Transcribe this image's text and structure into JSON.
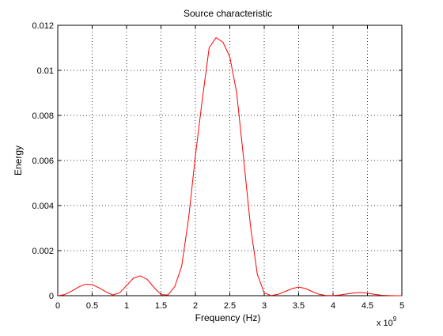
{
  "chart_data": {
    "type": "line",
    "title": "Source characteristic",
    "xlabel": "Frequency (Hz)",
    "ylabel": "Energy",
    "x_exponent_label": "x 10",
    "x_exponent_power": "9",
    "xlim": [
      0,
      5
    ],
    "ylim": [
      0,
      0.012
    ],
    "xticks": [
      "0",
      "0.5",
      "1",
      "1.5",
      "2",
      "2.5",
      "3",
      "3.5",
      "4",
      "4.5",
      "5"
    ],
    "yticks": [
      "0",
      "0.002",
      "0.004",
      "0.006",
      "0.008",
      "0.01",
      "0.012"
    ],
    "grid": true,
    "grid_style": "dotted",
    "line_color": "#ff0000",
    "series": [
      {
        "x": [
          0,
          0.1,
          0.2,
          0.3,
          0.4,
          0.5,
          0.6,
          0.7,
          0.8,
          0.9,
          1.0,
          1.1,
          1.2,
          1.3,
          1.4,
          1.5,
          1.6,
          1.7,
          1.8,
          1.9,
          2.0,
          2.1,
          2.2,
          2.3,
          2.4,
          2.5,
          2.6,
          2.7,
          2.8,
          2.9,
          3.0,
          3.1,
          3.2,
          3.3,
          3.4,
          3.5,
          3.6,
          3.7,
          3.8,
          3.9,
          4.0,
          4.1,
          4.2,
          4.3,
          4.4,
          4.5,
          4.6,
          4.7,
          4.8,
          4.9,
          5.0
        ],
        "y": [
          0.0,
          5e-05,
          0.0002,
          0.00038,
          0.00051,
          0.00049,
          0.00035,
          0.00017,
          3e-05,
          0.00013,
          0.00045,
          0.00078,
          0.00088,
          0.00072,
          0.00036,
          5e-05,
          3e-05,
          0.0004,
          0.0013,
          0.0034,
          0.0062,
          0.0087,
          0.011,
          0.01145,
          0.01125,
          0.0106,
          0.009,
          0.0061,
          0.0031,
          0.00095,
          0.00012,
          1e-05,
          6e-05,
          0.00018,
          0.00031,
          0.00038,
          0.00032,
          0.00018,
          6e-05,
          1e-05,
          1e-05,
          3e-05,
          8e-05,
          0.00012,
          0.00014,
          0.00011,
          6e-05,
          2e-05,
          1e-05,
          0.0,
          0.0
        ]
      }
    ]
  }
}
